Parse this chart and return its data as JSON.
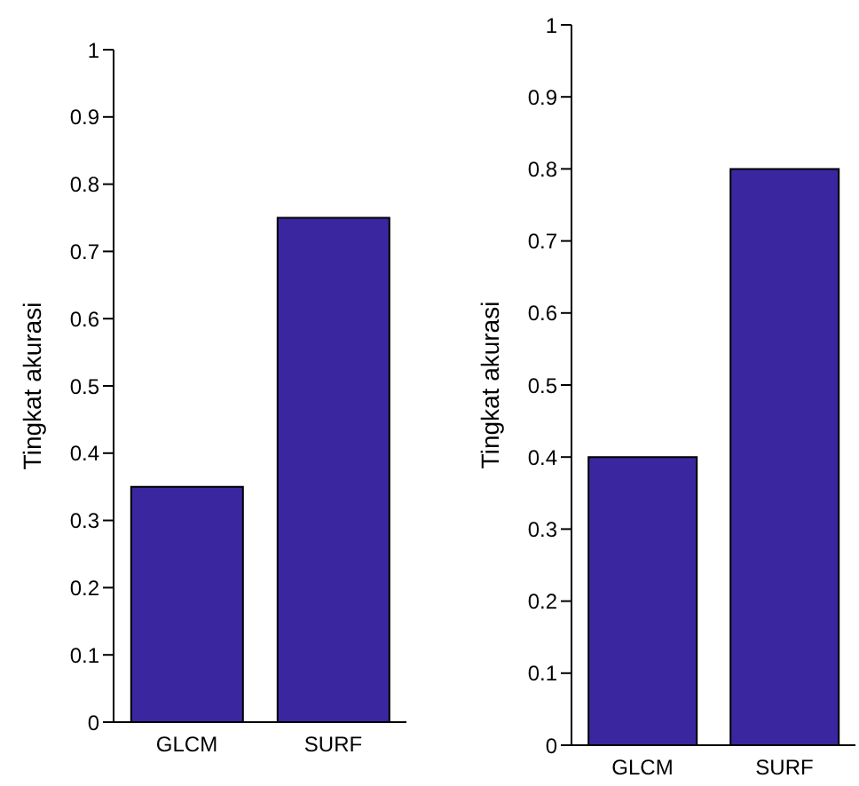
{
  "chart_data": [
    {
      "type": "bar",
      "categories": [
        "GLCM",
        "SURF"
      ],
      "values": [
        0.35,
        0.75
      ],
      "color": "#3a27a0",
      "ylabel": "Tingkat akurasi",
      "ylim": [
        0,
        1
      ],
      "yticks": [
        0,
        0.1,
        0.2,
        0.3,
        0.4,
        0.5,
        0.6,
        0.7,
        0.8,
        0.9,
        1
      ]
    },
    {
      "type": "bar",
      "categories": [
        "GLCM",
        "SURF"
      ],
      "values": [
        0.4,
        0.8
      ],
      "color": "#3a27a0",
      "ylabel": "Tingkat akurasi",
      "ylim": [
        0,
        1
      ],
      "yticks": [
        0,
        0.1,
        0.2,
        0.3,
        0.4,
        0.5,
        0.6,
        0.7,
        0.8,
        0.9,
        1
      ]
    }
  ]
}
